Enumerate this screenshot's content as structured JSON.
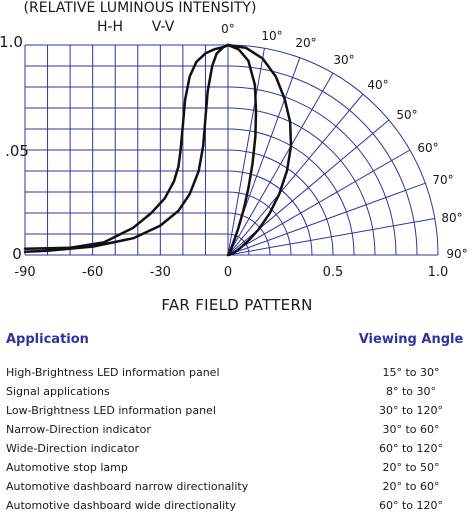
{
  "chart_data": {
    "type": "line",
    "title": "(RELATIVE LUMINOUS INTENSITY)",
    "subtitle": "FAR FIELD PATTERN",
    "legend": [
      "H-H",
      "V-V"
    ],
    "ylim": [
      0,
      1.0
    ],
    "y_ticks": [
      "0",
      ".05",
      "1.0"
    ],
    "xlim": [
      -90,
      1.0
    ],
    "x_ticks_left": [
      "-90",
      "-60",
      "-30",
      "0"
    ],
    "x_ticks_right": [
      "0.5",
      "1.0"
    ],
    "polar_angles": [
      "0°",
      "10°",
      "20°",
      "30°",
      "40°",
      "50°",
      "60°",
      "70°",
      "80°",
      "90°"
    ],
    "series": [
      {
        "name": "H-H",
        "points": [
          [
            0,
            1.0
          ],
          [
            -2,
            0.99
          ],
          [
            -6,
            0.98
          ],
          [
            -10,
            0.96
          ],
          [
            -14,
            0.92
          ],
          [
            -17,
            0.85
          ],
          [
            -19,
            0.74
          ],
          [
            -20,
            0.62
          ],
          [
            -21,
            0.5
          ],
          [
            -22,
            0.42
          ],
          [
            -24,
            0.35
          ],
          [
            -28,
            0.27
          ],
          [
            -34,
            0.2
          ],
          [
            -42,
            0.13
          ],
          [
            -55,
            0.06
          ],
          [
            -70,
            0.035
          ],
          [
            -90,
            0.03
          ]
        ],
        "polar": [
          [
            0,
            1.0
          ],
          [
            5,
            0.99
          ],
          [
            10,
            0.95
          ],
          [
            15,
            0.88
          ],
          [
            20,
            0.79
          ],
          [
            25,
            0.7
          ],
          [
            30,
            0.6
          ],
          [
            35,
            0.49
          ],
          [
            40,
            0.38
          ],
          [
            45,
            0.28
          ],
          [
            50,
            0.19
          ],
          [
            55,
            0.12
          ],
          [
            60,
            0.07
          ],
          [
            70,
            0.03
          ],
          [
            80,
            0.01
          ],
          [
            90,
            0.0
          ]
        ]
      },
      {
        "name": "V-V",
        "points": [
          [
            0,
            1.0
          ],
          [
            -2,
            0.99
          ],
          [
            -5,
            0.96
          ],
          [
            -7,
            0.9
          ],
          [
            -9,
            0.78
          ],
          [
            -10,
            0.65
          ],
          [
            -11,
            0.52
          ],
          [
            -13,
            0.4
          ],
          [
            -17,
            0.29
          ],
          [
            -22,
            0.21
          ],
          [
            -30,
            0.14
          ],
          [
            -42,
            0.08
          ],
          [
            -60,
            0.04
          ],
          [
            -80,
            0.02
          ],
          [
            -90,
            0.015
          ]
        ],
        "polar": [
          [
            0,
            1.0
          ],
          [
            3,
            0.98
          ],
          [
            6,
            0.93
          ],
          [
            9,
            0.82
          ],
          [
            11,
            0.7
          ],
          [
            13,
            0.58
          ],
          [
            15,
            0.45
          ],
          [
            17,
            0.33
          ],
          [
            19,
            0.23
          ],
          [
            21,
            0.14
          ],
          [
            23,
            0.08
          ],
          [
            26,
            0.04
          ],
          [
            30,
            0.02
          ],
          [
            40,
            0.0
          ]
        ]
      }
    ]
  },
  "table": {
    "header": {
      "application": "Application",
      "viewing_angle": "Viewing Angle"
    },
    "rows": [
      {
        "application": "High-Brightness LED information panel",
        "angle": "15° to 30°"
      },
      {
        "application": "Signal applications",
        "angle": "8° to 30°"
      },
      {
        "application": "Low-Brightness LED information panel",
        "angle": "30° to 120°"
      },
      {
        "application": "Narrow-Direction indicator",
        "angle": "30° to 60°"
      },
      {
        "application": "Wide-Direction indicator",
        "angle": "60° to 120°"
      },
      {
        "application": "Automotive stop lamp",
        "angle": "20° to 50°"
      },
      {
        "application": "Automotive dashboard narrow directionality",
        "angle": "20° to 60°"
      },
      {
        "application": "Automotive dashboard wide directionality",
        "angle": "60° to 120°"
      }
    ]
  }
}
